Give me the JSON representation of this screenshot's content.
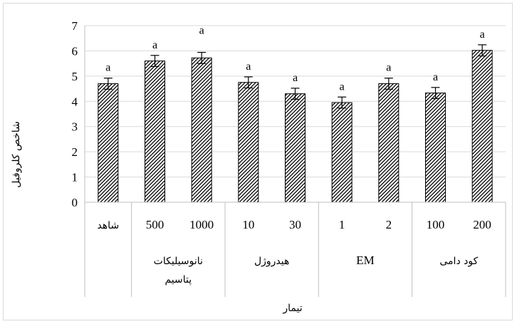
{
  "chart_data": {
    "type": "bar",
    "ylabel": "شاخص کلروفیل",
    "xlabel": "تیمار",
    "ylim": [
      0,
      7
    ],
    "yticks": [
      "0",
      "1",
      "2",
      "3",
      "4",
      "5",
      "6",
      "7"
    ],
    "categories": [
      "شاهد",
      "500",
      "1000",
      "10",
      "30",
      "1",
      "2",
      "100",
      "200"
    ],
    "values": [
      4.7,
      5.6,
      5.72,
      4.75,
      4.3,
      3.95,
      4.7,
      4.33,
      6.02
    ],
    "errors": [
      0.22,
      0.22,
      0.22,
      0.22,
      0.22,
      0.22,
      0.22,
      0.22,
      0.22
    ],
    "significance": [
      "a",
      "a",
      "a",
      "a",
      "a",
      "a",
      "a",
      "a",
      "a"
    ],
    "groups": [
      {
        "label_lines": [
          ""
        ],
        "span": 1
      },
      {
        "label_lines": [
          "نانوسیلیکات",
          "پتاسیم"
        ],
        "span": 2
      },
      {
        "label_lines": [
          "هیدروژل"
        ],
        "span": 2
      },
      {
        "label_lines": [
          "EM"
        ],
        "span": 2
      },
      {
        "label_lines": [
          "کود دامی"
        ],
        "span": 2
      }
    ],
    "grid": true,
    "bar_fill": "diagonal-hatch",
    "colors": {
      "bar_stroke": "#000000",
      "hatch": "#000000",
      "gridline": "#d9d9d9"
    }
  }
}
